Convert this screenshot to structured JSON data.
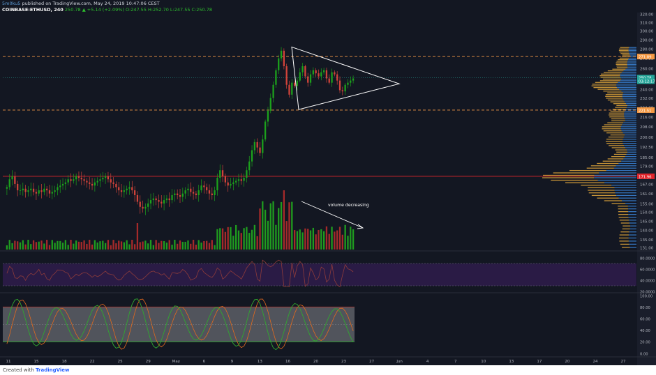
{
  "header": {
    "author": "5m0ku5",
    "published": "published on TradingView.com, May 24, 2019 10:47:06 CEST",
    "symbol": "COINBASE:ETHUSD, 240",
    "ohlc_text": "250.78 ▲ +5.14 (+2.09%) O:247.55 H:252.70 L:247.55 C:250.78"
  },
  "footer": {
    "created_with": "Created with",
    "brand": "TradingView"
  },
  "colors": {
    "bg": "#131722",
    "up": "#26a69a",
    "candle_up": "#1ca11c",
    "candle_down": "#d0433a",
    "vol_up": "#1f9c1f",
    "vol_down": "#a52a2a",
    "hline": "#f59a45",
    "redline": "#e0262c",
    "rsi_band": "#2a1b45",
    "rsi_line": "#8e3b3b",
    "stoch_band": "#5d5f66",
    "stoch_k": "#30a830",
    "stoch_d": "#e46a1c",
    "vp_orange": "#d9a13a",
    "vp_blue": "#3a7fd0"
  },
  "annotations": {
    "volume_text": "volume decreasing"
  },
  "price_axis": {
    "ticks": [
      "320.00",
      "310.00",
      "300.00",
      "290.00",
      "280.00",
      "270.00",
      "260.00",
      "250.00",
      "240.00",
      "232.00",
      "224.00",
      "216.00",
      "208.00",
      "200.00",
      "192.50",
      "185.00",
      "179.00",
      "173.00",
      "167.00",
      "161.00",
      "155.00",
      "150.00",
      "145.00",
      "140.00",
      "135.00",
      "131.00"
    ],
    "badges": [
      {
        "text": "271.89",
        "color": "#f59a45"
      },
      {
        "text": "250.78",
        "color": "#26a69a"
      },
      {
        "text": "03:12:17",
        "color": "#26a69a"
      },
      {
        "text": "221.51",
        "color": "#f59a45"
      },
      {
        "text": "171.96",
        "color": "#e0262c"
      }
    ]
  },
  "rsi_axis": {
    "ticks": [
      "80.0000",
      "60.0000",
      "40.0000",
      "20.0000"
    ]
  },
  "stoch_axis": {
    "ticks": [
      "100.00",
      "80.00",
      "60.00",
      "40.00",
      "20.00",
      "0.00"
    ]
  },
  "time_axis": {
    "ticks": [
      "11",
      "15",
      "18",
      "22",
      "25",
      "29",
      "May",
      "6",
      "9",
      "13",
      "16",
      "20",
      "23",
      "27",
      "Jun",
      "4",
      "7",
      "10",
      "13",
      "17",
      "20",
      "24",
      "27"
    ]
  },
  "chart_data": {
    "type": "candlestick",
    "symbol": "COINBASE:ETHUSD",
    "interval": "240",
    "levels": [
      {
        "name": "resistance",
        "price": 271.89
      },
      {
        "name": "support",
        "price": 221.51
      },
      {
        "name": "volume_poc",
        "price": 171.96
      }
    ],
    "triangle": {
      "top_left_price": 282,
      "bottom_left_price": 221,
      "apex_price": 245
    },
    "close": [
      165,
      170,
      172,
      167,
      163,
      163,
      164,
      162,
      163,
      164,
      162,
      161,
      163,
      162,
      164,
      163,
      161,
      162,
      163,
      165,
      166,
      167,
      168,
      170,
      169,
      170,
      172,
      171,
      170,
      169,
      168,
      167,
      166,
      168,
      169,
      170,
      171,
      172,
      170,
      168,
      167,
      165,
      163,
      162,
      163,
      164,
      165,
      163,
      160,
      156,
      153,
      152,
      153,
      155,
      157,
      158,
      157,
      156,
      155,
      157,
      158,
      157,
      160,
      161,
      160,
      159,
      161,
      163,
      164,
      162,
      161,
      160,
      163,
      166,
      165,
      163,
      161,
      160,
      163,
      171,
      176,
      172,
      168,
      166,
      167,
      168,
      169,
      170,
      169,
      171,
      176,
      182,
      190,
      196,
      192,
      188,
      198,
      212,
      221,
      232,
      244,
      258,
      270,
      278,
      262,
      244,
      235,
      246,
      243,
      248,
      256,
      262,
      252,
      246,
      254,
      258,
      255,
      252,
      256,
      258,
      250,
      246,
      256,
      254,
      248,
      239,
      238,
      244,
      246,
      248,
      250
    ],
    "volume_pattern": "decreasing",
    "rsi_range": [
      30,
      80
    ],
    "stoch_levels": [
      20,
      80
    ]
  }
}
